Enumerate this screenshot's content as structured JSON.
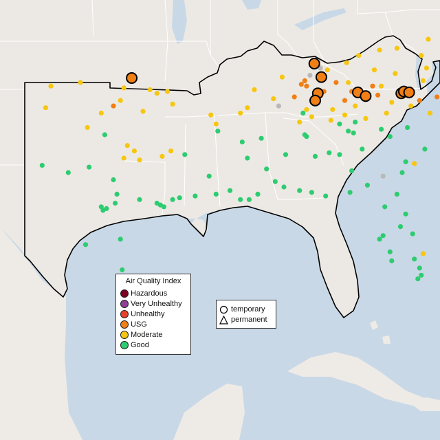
{
  "colors": {
    "water": "#c9d8e6",
    "land": "#ece9e4",
    "land_alt": "#e6e2dc",
    "mexico": "#eeebe7",
    "state_border": "#ffffff",
    "region_border": "#000000",
    "hazardous": "#7e0023",
    "very_unhealthy": "#8f3f97",
    "unhealthy": "#e8412c",
    "usg": "#f07f16",
    "moderate": "#f6c611",
    "good": "#2ecc71",
    "no_data": "#b9b9b9"
  },
  "legend": {
    "title": "Air Quality Index",
    "items": [
      {
        "key": "hazardous",
        "label": "Hazardous"
      },
      {
        "key": "very_unhealthy",
        "label": "Very Unhealthy"
      },
      {
        "key": "unhealthy",
        "label": "Unhealthy"
      },
      {
        "key": "usg",
        "label": "USG"
      },
      {
        "key": "moderate",
        "label": "Moderate"
      },
      {
        "key": "good",
        "label": "Good"
      }
    ]
  },
  "site_legend": {
    "temporary": "temporary",
    "permanent": "permanent"
  },
  "monitors": [
    {
      "aqi": "usg",
      "type": "temporary",
      "lon": -96.85,
      "lat": 36.75
    },
    {
      "aqi": "usg",
      "type": "temporary",
      "lon": -86.35,
      "lat": 37.55
    },
    {
      "aqi": "usg",
      "type": "temporary",
      "lon": -85.95,
      "lat": 36.8
    },
    {
      "aqi": "usg",
      "type": "temporary",
      "lon": -86.15,
      "lat": 35.9
    },
    {
      "aqi": "usg",
      "type": "temporary",
      "lon": -86.3,
      "lat": 35.5
    },
    {
      "aqi": "usg",
      "type": "temporary",
      "lon": -83.85,
      "lat": 35.95
    },
    {
      "aqi": "usg",
      "type": "temporary",
      "lon": -83.4,
      "lat": 35.75
    },
    {
      "aqi": "usg",
      "type": "temporary",
      "lon": -81.35,
      "lat": 35.9
    },
    {
      "aqi": "usg",
      "type": "temporary",
      "lon": -81.2,
      "lat": 36.0
    },
    {
      "aqi": "usg",
      "type": "temporary",
      "lon": -80.9,
      "lat": 35.95
    }
  ],
  "small_dots": [
    {
      "aqi": "usg",
      "lon": -97.9,
      "lat": 35.2
    },
    {
      "aqi": "usg",
      "lon": -87.5,
      "lat": 35.7
    },
    {
      "aqi": "usg",
      "lon": -87.1,
      "lat": 36.4
    },
    {
      "aqi": "usg",
      "lon": -86.9,
      "lat": 36.6
    },
    {
      "aqi": "usg",
      "lon": -85.8,
      "lat": 36.0
    },
    {
      "aqi": "usg",
      "lon": -85.1,
      "lat": 36.5
    },
    {
      "aqi": "usg",
      "lon": -84.6,
      "lat": 35.5
    },
    {
      "aqi": "usg",
      "lon": -84.2,
      "lat": 36.0
    },
    {
      "aqi": "usg",
      "lon": -83.0,
      "lat": 36.3
    },
    {
      "aqi": "usg",
      "lon": -82.7,
      "lat": 35.8
    },
    {
      "aqi": "usg",
      "lon": -80.3,
      "lat": 35.5
    },
    {
      "aqi": "usg",
      "lon": -79.3,
      "lat": 35.7
    },
    {
      "aqi": "usg",
      "lon": -78.6,
      "lat": 35.9
    },
    {
      "aqi": "usg",
      "lon": -76.9,
      "lat": 37.9
    },
    {
      "aqi": "usg",
      "lon": -86.8,
      "lat": 36.3
    },
    {
      "aqi": "moderate",
      "lon": -101.5,
      "lat": 36.3
    },
    {
      "aqi": "moderate",
      "lon": -99.8,
      "lat": 36.5
    },
    {
      "aqi": "moderate",
      "lon": -97.3,
      "lat": 36.2
    },
    {
      "aqi": "moderate",
      "lon": -95.8,
      "lat": 36.1
    },
    {
      "aqi": "moderate",
      "lon": -94.8,
      "lat": 36.0
    },
    {
      "aqi": "moderate",
      "lon": -94.5,
      "lat": 35.3
    },
    {
      "aqi": "moderate",
      "lon": -95.4,
      "lat": 35.9
    },
    {
      "aqi": "moderate",
      "lon": -97.5,
      "lat": 35.5
    },
    {
      "aqi": "moderate",
      "lon": -98.6,
      "lat": 34.8
    },
    {
      "aqi": "moderate",
      "lon": -96.2,
      "lat": 34.9
    },
    {
      "aqi": "moderate",
      "lon": -101.8,
      "lat": 35.1
    },
    {
      "aqi": "moderate",
      "lon": -99.4,
      "lat": 34.0
    },
    {
      "aqi": "moderate",
      "lon": -97.1,
      "lat": 33.0
    },
    {
      "aqi": "moderate",
      "lon": -96.7,
      "lat": 32.7
    },
    {
      "aqi": "moderate",
      "lon": -97.3,
      "lat": 32.3
    },
    {
      "aqi": "moderate",
      "lon": -96.4,
      "lat": 32.2
    },
    {
      "aqi": "moderate",
      "lon": -95.1,
      "lat": 32.4
    },
    {
      "aqi": "moderate",
      "lon": -94.6,
      "lat": 32.7
    },
    {
      "aqi": "moderate",
      "lon": -92.3,
      "lat": 34.7
    },
    {
      "aqi": "moderate",
      "lon": -92.0,
      "lat": 34.2
    },
    {
      "aqi": "moderate",
      "lon": -90.2,
      "lat": 35.1
    },
    {
      "aqi": "moderate",
      "lon": -90.6,
      "lat": 34.8
    },
    {
      "aqi": "moderate",
      "lon": -88.7,
      "lat": 35.6
    },
    {
      "aqi": "moderate",
      "lon": -86.8,
      "lat": 35.0
    },
    {
      "aqi": "moderate",
      "lon": -86.5,
      "lat": 34.6
    },
    {
      "aqi": "moderate",
      "lon": -85.3,
      "lat": 35.0
    },
    {
      "aqi": "moderate",
      "lon": -84.0,
      "lat": 35.2
    },
    {
      "aqi": "moderate",
      "lon": -84.4,
      "lat": 36.5
    },
    {
      "aqi": "moderate",
      "lon": -85.6,
      "lat": 37.2
    },
    {
      "aqi": "moderate",
      "lon": -84.5,
      "lat": 37.6
    },
    {
      "aqi": "moderate",
      "lon": -83.8,
      "lat": 38.0
    },
    {
      "aqi": "moderate",
      "lon": -82.6,
      "lat": 38.3
    },
    {
      "aqi": "moderate",
      "lon": -81.6,
      "lat": 38.4
    },
    {
      "aqi": "moderate",
      "lon": -80.2,
      "lat": 38.0
    },
    {
      "aqi": "moderate",
      "lon": -79.8,
      "lat": 38.9
    },
    {
      "aqi": "moderate",
      "lon": -78.9,
      "lat": 39.3
    },
    {
      "aqi": "moderate",
      "lon": -77.3,
      "lat": 39.0
    },
    {
      "aqi": "moderate",
      "lon": -76.8,
      "lat": 39.2
    },
    {
      "aqi": "moderate",
      "lon": -75.7,
      "lat": 39.5
    },
    {
      "aqi": "moderate",
      "lon": -78.0,
      "lat": 37.6
    },
    {
      "aqi": "moderate",
      "lon": -79.9,
      "lat": 37.3
    },
    {
      "aqi": "moderate",
      "lon": -81.7,
      "lat": 37.0
    },
    {
      "aqi": "moderate",
      "lon": -82.9,
      "lat": 37.2
    },
    {
      "aqi": "moderate",
      "lon": -80.1,
      "lat": 36.6
    },
    {
      "aqi": "moderate",
      "lon": -79.0,
      "lat": 36.1
    },
    {
      "aqi": "moderate",
      "lon": -77.7,
      "lat": 36.4
    },
    {
      "aqi": "moderate",
      "lon": -76.3,
      "lat": 36.8
    },
    {
      "aqi": "moderate",
      "lon": -77.9,
      "lat": 35.3
    },
    {
      "aqi": "moderate",
      "lon": -79.7,
      "lat": 34.8
    },
    {
      "aqi": "moderate",
      "lon": -80.8,
      "lat": 35.2
    },
    {
      "aqi": "moderate",
      "lon": -82.2,
      "lat": 34.8
    },
    {
      "aqi": "moderate",
      "lon": -83.4,
      "lat": 34.5
    },
    {
      "aqi": "moderate",
      "lon": -84.6,
      "lat": 34.7
    },
    {
      "aqi": "moderate",
      "lon": -85.4,
      "lat": 34.4
    },
    {
      "aqi": "moderate",
      "lon": -87.2,
      "lat": 34.3
    },
    {
      "aqi": "moderate",
      "lon": -88.2,
      "lat": 36.8
    },
    {
      "aqi": "moderate",
      "lon": -89.8,
      "lat": 36.1
    },
    {
      "aqi": "moderate",
      "lon": -80.6,
      "lat": 32.0
    },
    {
      "aqi": "moderate",
      "lon": -80.1,
      "lat": 27.0
    },
    {
      "aqi": "moderate",
      "lon": -76.6,
      "lat": 35.6
    },
    {
      "aqi": "moderate",
      "lon": -75.9,
      "lat": 36.2
    },
    {
      "aqi": "moderate",
      "lon": -82.5,
      "lat": 36.3
    },
    {
      "aqi": "moderate",
      "lon": -81.9,
      "lat": 35.4
    },
    {
      "aqi": "good",
      "lon": -102.0,
      "lat": 31.9
    },
    {
      "aqi": "good",
      "lon": -100.5,
      "lat": 31.5
    },
    {
      "aqi": "good",
      "lon": -99.3,
      "lat": 31.8
    },
    {
      "aqi": "good",
      "lon": -98.4,
      "lat": 33.6
    },
    {
      "aqi": "good",
      "lon": -97.9,
      "lat": 31.1
    },
    {
      "aqi": "good",
      "lon": -97.7,
      "lat": 30.3
    },
    {
      "aqi": "good",
      "lon": -97.8,
      "lat": 29.8
    },
    {
      "aqi": "good",
      "lon": -98.5,
      "lat": 29.4
    },
    {
      "aqi": "good",
      "lon": -98.6,
      "lat": 29.6
    },
    {
      "aqi": "good",
      "lon": -98.3,
      "lat": 29.5
    },
    {
      "aqi": "good",
      "lon": -99.5,
      "lat": 27.5
    },
    {
      "aqi": "good",
      "lon": -97.5,
      "lat": 27.8
    },
    {
      "aqi": "good",
      "lon": -97.4,
      "lat": 26.1
    },
    {
      "aqi": "good",
      "lon": -96.4,
      "lat": 30.0
    },
    {
      "aqi": "good",
      "lon": -95.4,
      "lat": 29.8
    },
    {
      "aqi": "good",
      "lon": -95.2,
      "lat": 29.7
    },
    {
      "aqi": "good",
      "lon": -95.0,
      "lat": 29.6
    },
    {
      "aqi": "good",
      "lon": -94.5,
      "lat": 30.0
    },
    {
      "aqi": "good",
      "lon": -94.1,
      "lat": 30.1
    },
    {
      "aqi": "good",
      "lon": -93.2,
      "lat": 30.2
    },
    {
      "aqi": "good",
      "lon": -92.0,
      "lat": 30.3
    },
    {
      "aqi": "good",
      "lon": -91.2,
      "lat": 30.5
    },
    {
      "aqi": "good",
      "lon": -90.6,
      "lat": 30.0
    },
    {
      "aqi": "good",
      "lon": -90.1,
      "lat": 30.0
    },
    {
      "aqi": "good",
      "lon": -89.6,
      "lat": 30.3
    },
    {
      "aqi": "good",
      "lon": -92.4,
      "lat": 31.3
    },
    {
      "aqi": "good",
      "lon": -93.8,
      "lat": 32.5
    },
    {
      "aqi": "good",
      "lon": -90.2,
      "lat": 32.3
    },
    {
      "aqi": "good",
      "lon": -88.6,
      "lat": 31.0
    },
    {
      "aqi": "good",
      "lon": -88.1,
      "lat": 30.7
    },
    {
      "aqi": "good",
      "lon": -87.2,
      "lat": 30.5
    },
    {
      "aqi": "good",
      "lon": -86.5,
      "lat": 30.4
    },
    {
      "aqi": "good",
      "lon": -85.7,
      "lat": 30.2
    },
    {
      "aqi": "good",
      "lon": -84.3,
      "lat": 30.4
    },
    {
      "aqi": "good",
      "lon": -86.3,
      "lat": 32.4
    },
    {
      "aqi": "good",
      "lon": -85.5,
      "lat": 32.6
    },
    {
      "aqi": "good",
      "lon": -84.9,
      "lat": 32.5
    },
    {
      "aqi": "good",
      "lon": -84.4,
      "lat": 33.8
    },
    {
      "aqi": "good",
      "lon": -84.1,
      "lat": 33.7
    },
    {
      "aqi": "good",
      "lon": -83.6,
      "lat": 32.8
    },
    {
      "aqi": "good",
      "lon": -82.0,
      "lat": 33.5
    },
    {
      "aqi": "good",
      "lon": -81.1,
      "lat": 32.1
    },
    {
      "aqi": "good",
      "lon": -80.0,
      "lat": 32.8
    },
    {
      "aqi": "good",
      "lon": -79.0,
      "lat": 33.7
    },
    {
      "aqi": "good",
      "lon": -81.0,
      "lat": 34.0
    },
    {
      "aqi": "good",
      "lon": -81.6,
      "lat": 30.3
    },
    {
      "aqi": "good",
      "lon": -82.3,
      "lat": 29.6
    },
    {
      "aqi": "good",
      "lon": -81.4,
      "lat": 28.5
    },
    {
      "aqi": "good",
      "lon": -82.4,
      "lat": 28.0
    },
    {
      "aqi": "good",
      "lon": -82.6,
      "lat": 27.8
    },
    {
      "aqi": "good",
      "lon": -81.9,
      "lat": 26.6
    },
    {
      "aqi": "good",
      "lon": -80.4,
      "lat": 25.6
    },
    {
      "aqi": "good",
      "lon": -80.2,
      "lat": 25.8
    },
    {
      "aqi": "good",
      "lon": -80.3,
      "lat": 26.2
    },
    {
      "aqi": "good",
      "lon": -84.2,
      "lat": 31.6
    },
    {
      "aqi": "good",
      "lon": -83.3,
      "lat": 30.8
    },
    {
      "aqi": "good",
      "lon": -87.0,
      "lat": 34.8
    },
    {
      "aqi": "good",
      "lon": -86.8,
      "lat": 33.5
    },
    {
      "aqi": "good",
      "lon": -86.9,
      "lat": 33.6
    },
    {
      "aqi": "good",
      "lon": -88.0,
      "lat": 32.5
    },
    {
      "aqi": "good",
      "lon": -89.1,
      "lat": 31.7
    },
    {
      "aqi": "good",
      "lon": -90.5,
      "lat": 33.2
    },
    {
      "aqi": "good",
      "lon": -91.9,
      "lat": 33.8
    },
    {
      "aqi": "good",
      "lon": -89.4,
      "lat": 33.4
    },
    {
      "aqi": "good",
      "lon": -84.9,
      "lat": 34.2
    },
    {
      "aqi": "good",
      "lon": -84.0,
      "lat": 34.3
    },
    {
      "aqi": "good",
      "lon": -82.5,
      "lat": 33.9
    },
    {
      "aqi": "good",
      "lon": -81.3,
      "lat": 31.5
    },
    {
      "aqi": "good",
      "lon": -80.7,
      "lat": 28.1
    },
    {
      "aqi": "good",
      "lon": -81.1,
      "lat": 29.2
    },
    {
      "aqi": "good",
      "lon": -82.0,
      "lat": 27.1
    },
    {
      "aqi": "good",
      "lon": -80.6,
      "lat": 26.7
    },
    {
      "aqi": "no_data",
      "lon": -97.0,
      "lat": 36.9
    },
    {
      "aqi": "no_data",
      "lon": -86.0,
      "lat": 37.3
    },
    {
      "aqi": "no_data",
      "lon": -88.4,
      "lat": 35.2
    },
    {
      "aqi": "no_data",
      "lon": -86.6,
      "lat": 36.9
    },
    {
      "aqi": "no_data",
      "lon": -82.4,
      "lat": 31.3
    },
    {
      "aqi": "no_data",
      "lon": -79.0,
      "lat": 38.0
    }
  ]
}
